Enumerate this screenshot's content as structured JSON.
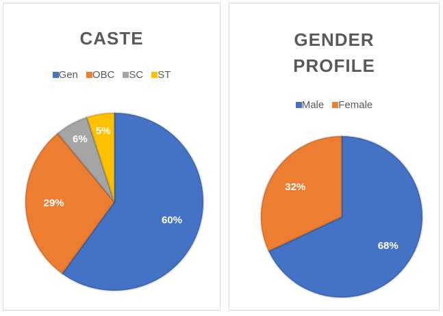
{
  "chart_data": [
    {
      "type": "pie",
      "title": "CASTE",
      "categories": [
        "Gen",
        "OBC",
        "SC",
        "ST"
      ],
      "values": [
        60,
        29,
        6,
        5
      ],
      "value_labels": [
        "60%",
        "29%",
        "6%",
        "5%"
      ],
      "colors": [
        "#4472c4",
        "#ed7d31",
        "#a5a5a5",
        "#ffc000"
      ]
    },
    {
      "type": "pie",
      "title": "GENDER PROFILE",
      "categories": [
        "Male",
        "Female"
      ],
      "values": [
        68,
        32
      ],
      "value_labels": [
        "68%",
        "32%"
      ],
      "colors": [
        "#4472c4",
        "#ed7d31"
      ]
    }
  ]
}
